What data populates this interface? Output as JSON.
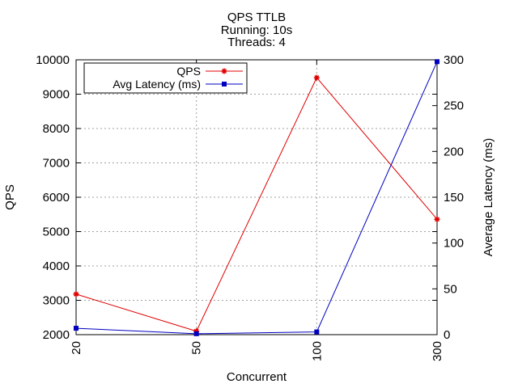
{
  "chart_data": {
    "type": "line",
    "title_lines": [
      "QPS  TTLB",
      "Running: 10s",
      "Threads: 4"
    ],
    "xlabel": "Concurrent",
    "ylabel_left": "QPS",
    "ylabel_right": "Average Latency (ms)",
    "categories": [
      "20",
      "50",
      "100",
      "300"
    ],
    "y_left": {
      "min": 2000,
      "max": 10000,
      "ticks": [
        2000,
        3000,
        4000,
        5000,
        6000,
        7000,
        8000,
        9000,
        10000
      ]
    },
    "y_right": {
      "min": 0,
      "max": 300,
      "ticks": [
        0,
        50,
        100,
        150,
        200,
        250,
        300
      ]
    },
    "grid": true,
    "legend_position": "top-left",
    "series": [
      {
        "name": "QPS",
        "axis": "left",
        "color": "#e00000",
        "marker": "star",
        "values": [
          3180,
          2100,
          9480,
          5360
        ]
      },
      {
        "name": "Avg Latency (ms)",
        "axis": "right",
        "color": "#0000c0",
        "marker": "square",
        "values": [
          7,
          1,
          3,
          298
        ]
      }
    ]
  }
}
